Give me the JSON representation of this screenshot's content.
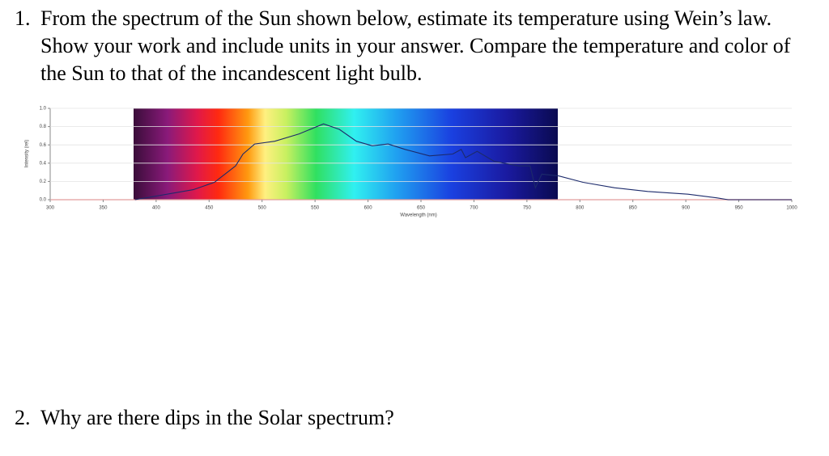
{
  "questions": [
    {
      "number": "1.",
      "text": "From the spectrum of the Sun shown below, estimate its temperature using Wein’s law. Show your work and include units in your answer. Compare the temperature and color of the Sun to that of the incandescent light bulb."
    },
    {
      "number": "2.",
      "text": "Why are there dips in the Solar spectrum?"
    }
  ],
  "chart_data": {
    "type": "line",
    "x_label": "Wavelength (nm)",
    "y_label": "Intensity (rel)",
    "x": [
      380,
      400,
      435,
      455,
      475,
      482,
      493,
      512,
      535,
      558,
      573,
      589,
      604,
      619,
      635,
      658,
      680,
      688,
      692,
      703,
      719,
      742,
      753,
      758,
      764,
      780,
      803,
      833,
      864,
      902,
      929,
      940,
      1000
    ],
    "values": [
      0,
      0.04,
      0.11,
      0.19,
      0.37,
      0.5,
      0.61,
      0.64,
      0.72,
      0.83,
      0.77,
      0.64,
      0.59,
      0.61,
      0.55,
      0.48,
      0.5,
      0.55,
      0.46,
      0.53,
      0.42,
      0.37,
      0.37,
      0.13,
      0.28,
      0.26,
      0.19,
      0.13,
      0.09,
      0.06,
      0.02,
      0,
      0
    ],
    "color": "#1c2a6b",
    "xlim": [
      300,
      1000
    ],
    "ylim": [
      0,
      1
    ],
    "xticks": [
      300,
      350,
      400,
      450,
      500,
      550,
      600,
      650,
      700,
      750,
      800,
      850,
      900,
      950,
      1000
    ],
    "yticks": [
      {
        "value": 0,
        "label": "0.0"
      },
      {
        "value": 0.2,
        "label": "0.2"
      },
      {
        "value": 0.4,
        "label": "0.4"
      },
      {
        "value": 0.6,
        "label": "0.6"
      },
      {
        "value": 0.8,
        "label": "0.8"
      },
      {
        "value": 1,
        "label": "1.0"
      }
    ],
    "grid": true
  }
}
